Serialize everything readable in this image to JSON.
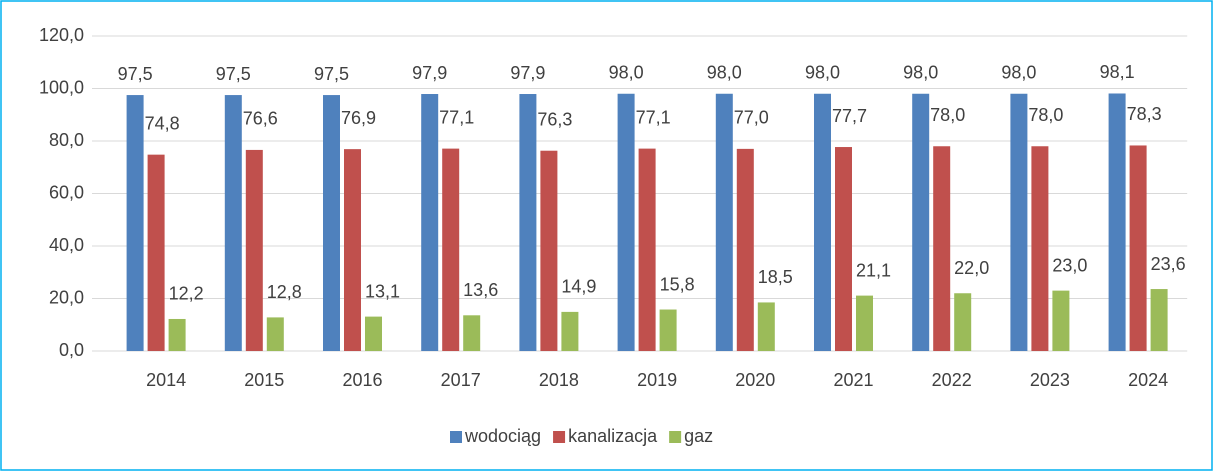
{
  "chart_data": {
    "type": "bar",
    "categories": [
      "2014",
      "2015",
      "2016",
      "2017",
      "2018",
      "2019",
      "2020",
      "2021",
      "2022",
      "2023",
      "2024"
    ],
    "series": [
      {
        "name": "wodociąg",
        "color": "#4f81bd",
        "values": [
          97.5,
          97.5,
          97.5,
          97.9,
          97.9,
          98.0,
          98.0,
          98.0,
          98.0,
          98.0,
          98.1
        ],
        "value_labels": [
          "97,5",
          "97,5",
          "97,5",
          "97,9",
          "97,9",
          "98,0",
          "98,0",
          "98,0",
          "98,0",
          "98,0",
          "98,1"
        ]
      },
      {
        "name": "kanalizacja",
        "color": "#c0504d",
        "values": [
          74.8,
          76.6,
          76.9,
          77.1,
          76.3,
          77.1,
          77.0,
          77.7,
          78.0,
          78.0,
          78.3
        ],
        "value_labels": [
          "74,8",
          "76,6",
          "76,9",
          "77,1",
          "76,3",
          "77,1",
          "77,0",
          "77,7",
          "78,0",
          "78,0",
          "78,3"
        ]
      },
      {
        "name": "gaz",
        "color": "#9bbb59",
        "values": [
          12.2,
          12.8,
          13.1,
          13.6,
          14.9,
          15.8,
          18.5,
          21.1,
          22.0,
          23.0,
          23.6
        ],
        "value_labels": [
          "12,2",
          "12,8",
          "13,1",
          "13,6",
          "14,9",
          "15,8",
          "18,5",
          "21,1",
          "22,0",
          "23,0",
          "23,6"
        ]
      }
    ],
    "ylim": [
      0,
      120
    ],
    "yticks": [
      {
        "value": 0,
        "label": "0,0"
      },
      {
        "value": 20,
        "label": "20,0"
      },
      {
        "value": 40,
        "label": "40,0"
      },
      {
        "value": 60,
        "label": "60,0"
      },
      {
        "value": 80,
        "label": "80,0"
      },
      {
        "value": 100,
        "label": "100,0"
      },
      {
        "value": 120,
        "label": "120,0"
      }
    ],
    "grid": true,
    "legend": "bottom"
  }
}
